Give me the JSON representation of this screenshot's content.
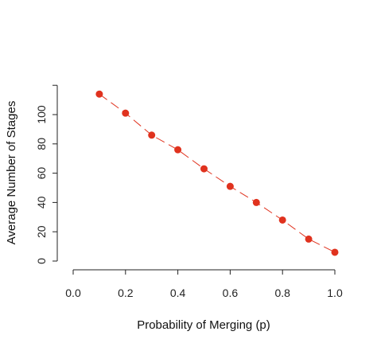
{
  "chart_data": {
    "type": "line",
    "title": "",
    "xlabel": "Probability of Merging (p)",
    "ylabel": "Average Number of Stages",
    "xlim": [
      0.0,
      1.0
    ],
    "ylim": [
      0,
      120
    ],
    "x_ticks": [
      "0.0",
      "0.2",
      "0.4",
      "0.6",
      "0.8",
      "1.0"
    ],
    "y_ticks": [
      "0",
      "20",
      "40",
      "60",
      "80",
      "100"
    ],
    "grid": false,
    "legend": "none",
    "line_style": "dashed",
    "marker": "filled-circle",
    "color": "#e0321e",
    "series": [
      {
        "x": [
          0.1,
          0.2,
          0.3,
          0.4,
          0.5,
          0.6,
          0.7,
          0.8,
          0.9,
          1.0
        ],
        "y": [
          114,
          101,
          86,
          76,
          63,
          51,
          40,
          28,
          15,
          6
        ]
      }
    ]
  }
}
